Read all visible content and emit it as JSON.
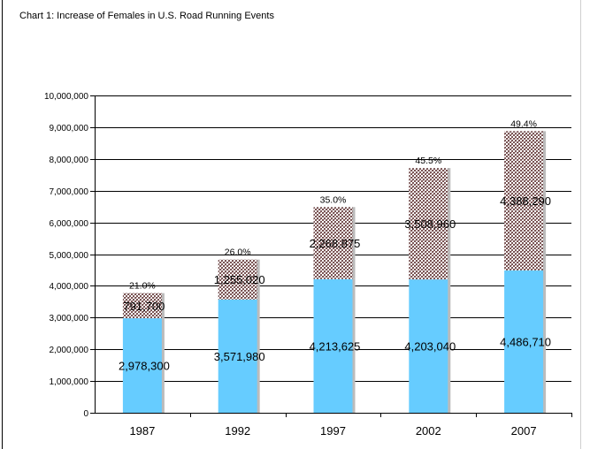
{
  "chart_data": {
    "type": "bar",
    "stacked": true,
    "title": "Chart 1: Increase of Females in U.S. Road Running Events",
    "categories": [
      "1987",
      "1992",
      "1997",
      "2002",
      "2007"
    ],
    "series": [
      {
        "values": [
          2978300,
          3571980,
          4213625,
          4203040,
          4486710
        ],
        "labels": [
          "2,978,300",
          "3,571,980",
          "4,213,625",
          "4,203,040",
          "4,486,710"
        ],
        "color": "#66ccff"
      },
      {
        "values": [
          791700,
          1255020,
          2268875,
          3508960,
          4388290
        ],
        "labels": [
          "791,700",
          "1,255,020",
          "2,268,875",
          "3,508,960",
          "4,388,290"
        ],
        "color": "#8a6a6a",
        "pattern": "crosshatch"
      }
    ],
    "percent_labels": [
      "21.0%",
      "26.0%",
      "35.0%",
      "45.5%",
      "49.4%"
    ],
    "ylim": [
      0,
      10000000
    ],
    "yticks": [
      0,
      1000000,
      2000000,
      3000000,
      4000000,
      5000000,
      6000000,
      7000000,
      8000000,
      9000000,
      10000000
    ],
    "ytick_labels": [
      "0",
      "1,000,000",
      "2,000,000",
      "3,000,000",
      "4,000,000",
      "5,000,000",
      "6,000,000",
      "7,000,000",
      "8,000,000",
      "9,000,000",
      "10,000,000"
    ],
    "grid": true,
    "legend": "none"
  }
}
